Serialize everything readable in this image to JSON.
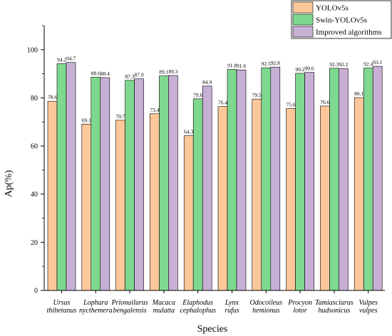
{
  "chart_data": {
    "type": "bar",
    "xlabel": "Species",
    "ylabel": "Ap(%)",
    "ylim": [
      0,
      110
    ],
    "yticks": [
      0,
      20,
      40,
      60,
      80,
      100
    ],
    "grid": false,
    "legend_position": "top-right",
    "categories": [
      [
        "Ursus",
        "thibetanus"
      ],
      [
        "Lophura",
        "nycthemera"
      ],
      [
        "Prionailurus",
        "bengalensis"
      ],
      [
        "Macaca",
        "mulatta"
      ],
      [
        "Elaphodus",
        "cephalophus"
      ],
      [
        "Lynx",
        "rufus"
      ],
      [
        "Odocoileus",
        "hemionus"
      ],
      [
        "Procyon",
        "lotor"
      ],
      [
        "Tamiasciurus",
        "hudsonicus"
      ],
      [
        "Vulpes",
        "vulpes"
      ]
    ],
    "series": [
      {
        "name": "YOLOv5s",
        "color": "#fdc899",
        "values": [
          78.6,
          69.1,
          70.7,
          73.4,
          64.3,
          76.4,
          79.5,
          75.6,
          76.6,
          80.1
        ]
      },
      {
        "name": "Swin-YOLOv5s",
        "color": "#7fd88f",
        "values": [
          94.2,
          88.6,
          87.3,
          89.1,
          79.6,
          91.8,
          92.5,
          90.2,
          92.3,
          92.4
        ]
      },
      {
        "name": "Improved algorithms",
        "color": "#c8afd6",
        "values": [
          94.7,
          88.4,
          87.9,
          89.3,
          84.9,
          91.6,
          92.8,
          90.6,
          92.2,
          93.1
        ]
      }
    ]
  }
}
